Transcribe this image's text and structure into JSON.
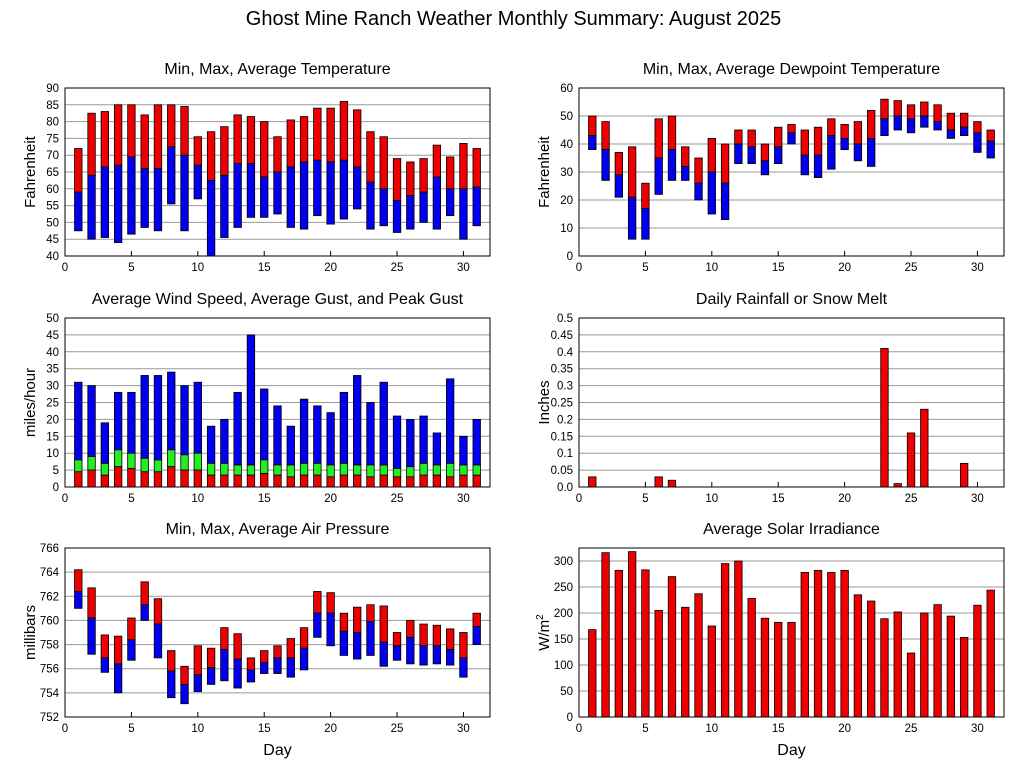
{
  "title": "Ghost Mine Ranch Weather Monthly Summary: August 2025",
  "colors": {
    "red": "#ee0000",
    "blue": "#0000ee",
    "green": "#22ee22",
    "grid": "#999999"
  },
  "chart_data": [
    {
      "id": "temp",
      "type": "bar",
      "title": "Min, Max, Average Temperature",
      "xlabel": "",
      "ylabel": "Fahrenheit",
      "xlim": [
        0,
        32
      ],
      "xticks": [
        "0",
        "5",
        "10",
        "15",
        "20",
        "25",
        "30"
      ],
      "ylim": [
        40,
        90
      ],
      "yticks": [
        "40",
        "45",
        "50",
        "55",
        "60",
        "65",
        "70",
        "75",
        "80",
        "85",
        "90"
      ],
      "days": [
        1,
        2,
        3,
        4,
        5,
        6,
        7,
        8,
        9,
        10,
        11,
        12,
        13,
        14,
        15,
        16,
        17,
        18,
        19,
        20,
        21,
        22,
        23,
        24,
        25,
        26,
        27,
        28,
        29,
        30,
        31
      ],
      "series": [
        {
          "name": "min",
          "values": [
            47.5,
            45,
            45.5,
            44,
            46.5,
            48.5,
            47.5,
            55.5,
            47.5,
            57,
            40,
            45.5,
            48.5,
            51.5,
            51.5,
            52.5,
            48.5,
            48,
            52,
            49.5,
            51,
            54,
            48,
            49,
            47,
            48,
            50,
            48,
            52,
            45,
            49
          ]
        },
        {
          "name": "avg",
          "values": [
            59,
            64,
            66.5,
            67,
            69.5,
            66,
            66,
            72.5,
            70,
            67,
            62.5,
            64,
            67.5,
            67.5,
            63.5,
            65,
            66.5,
            68,
            68.5,
            68,
            68.5,
            66.5,
            62,
            60,
            56.5,
            58,
            59,
            63.5,
            60,
            60,
            60.5
          ]
        },
        {
          "name": "max",
          "values": [
            72,
            82.5,
            83,
            85,
            85,
            82,
            85,
            85,
            84.5,
            75.5,
            77,
            78.5,
            82,
            81.5,
            80,
            75.5,
            80.5,
            81.5,
            84,
            84,
            86,
            83.5,
            77,
            75.5,
            69,
            68,
            69,
            73,
            69.5,
            73.5,
            72
          ]
        }
      ]
    },
    {
      "id": "dew",
      "type": "bar",
      "title": "Min, Max, Average Dewpoint Temperature",
      "xlabel": "",
      "ylabel": "Fahrenheit",
      "xlim": [
        0,
        32
      ],
      "xticks": [
        "0",
        "5",
        "10",
        "15",
        "20",
        "25",
        "30"
      ],
      "ylim": [
        0,
        60
      ],
      "yticks": [
        "0",
        "10",
        "20",
        "30",
        "40",
        "50",
        "60"
      ],
      "days": [
        1,
        2,
        3,
        4,
        5,
        6,
        7,
        8,
        9,
        10,
        11,
        12,
        13,
        14,
        15,
        16,
        17,
        18,
        19,
        20,
        21,
        22,
        23,
        24,
        25,
        26,
        27,
        28,
        29,
        30,
        31
      ],
      "series": [
        {
          "name": "min",
          "values": [
            38,
            27,
            21,
            6,
            6,
            22,
            27,
            27,
            20,
            15,
            13,
            33,
            33,
            29,
            33,
            40,
            29,
            28,
            31,
            38,
            34,
            32,
            43,
            45,
            44,
            46,
            45,
            42,
            43,
            37,
            35
          ]
        },
        {
          "name": "avg",
          "values": [
            43,
            38,
            29,
            21,
            17,
            35,
            38,
            32,
            26,
            30,
            26,
            40,
            39,
            34,
            39,
            44,
            36,
            36,
            43,
            42,
            40,
            42,
            49,
            50,
            49,
            50,
            48,
            45,
            46,
            44,
            41
          ]
        },
        {
          "name": "max",
          "values": [
            50,
            48,
            37,
            39,
            26,
            49,
            50,
            39,
            35,
            42,
            40,
            45,
            45,
            40,
            46,
            47,
            45,
            46,
            49,
            47,
            48,
            52,
            56,
            55.5,
            54,
            55,
            54,
            51,
            51,
            48,
            45
          ]
        }
      ]
    },
    {
      "id": "wind",
      "type": "bar",
      "title": "Average Wind Speed, Average Gust, and Peak Gust",
      "xlabel": "",
      "ylabel": "miles/hour",
      "xlim": [
        0,
        32
      ],
      "xticks": [
        "0",
        "5",
        "10",
        "15",
        "20",
        "25",
        "30"
      ],
      "ylim": [
        0,
        50
      ],
      "yticks": [
        "0",
        "5",
        "10",
        "15",
        "20",
        "25",
        "30",
        "35",
        "40",
        "45",
        "50"
      ],
      "days": [
        1,
        2,
        3,
        4,
        5,
        6,
        7,
        8,
        9,
        10,
        11,
        12,
        13,
        14,
        15,
        16,
        17,
        18,
        19,
        20,
        21,
        22,
        23,
        24,
        25,
        26,
        27,
        28,
        29,
        30,
        31
      ],
      "series": [
        {
          "name": "avg_wind",
          "values": [
            4.5,
            5,
            3.5,
            6,
            5.5,
            4.5,
            4.5,
            6,
            5,
            5,
            3.5,
            3.5,
            3.5,
            3.5,
            4,
            3.5,
            3,
            3.5,
            3.5,
            3,
            3.5,
            3.5,
            3,
            3.5,
            3,
            3,
            3.5,
            3.5,
            3,
            3.5,
            3.5
          ]
        },
        {
          "name": "avg_gust",
          "values": [
            8,
            9,
            7,
            11,
            10,
            8.5,
            8,
            11,
            9.5,
            10,
            7,
            7,
            6.5,
            6.5,
            8,
            6.5,
            6.5,
            7,
            7,
            6.5,
            7,
            6.5,
            6.5,
            6.5,
            5.5,
            6,
            7,
            6.5,
            7,
            6.5,
            6.5
          ]
        },
        {
          "name": "peak_gust",
          "values": [
            31,
            30,
            19,
            28,
            28,
            33,
            33,
            34,
            30,
            31,
            18,
            20,
            28,
            45,
            29,
            24,
            18,
            26,
            24,
            22,
            28,
            33,
            25,
            31,
            21,
            20,
            21,
            16,
            32,
            15,
            20
          ]
        }
      ]
    },
    {
      "id": "rain",
      "type": "bar",
      "title": "Daily Rainfall or Snow Melt",
      "xlabel": "",
      "ylabel": "Inches",
      "xlim": [
        0,
        32
      ],
      "xticks": [
        "0",
        "5",
        "10",
        "15",
        "20",
        "25",
        "30"
      ],
      "ylim": [
        0,
        0.5
      ],
      "yticks": [
        "0.0",
        "0.05",
        "0.1",
        "0.15",
        "0.2",
        "0.25",
        "0.3",
        "0.35",
        "0.4",
        "0.45",
        "0.5"
      ],
      "days": [
        1,
        6,
        7,
        23,
        24,
        25,
        26,
        29
      ],
      "values": [
        0.03,
        0.03,
        0.02,
        0.41,
        0.01,
        0.16,
        0.23,
        0.07
      ]
    },
    {
      "id": "press",
      "type": "bar",
      "title": "Min, Max, Average Air Pressure",
      "xlabel": "Day",
      "ylabel": "millibars",
      "xlim": [
        0,
        32
      ],
      "xticks": [
        "0",
        "5",
        "10",
        "15",
        "20",
        "25",
        "30"
      ],
      "ylim": [
        752,
        766
      ],
      "yticks": [
        "752",
        "754",
        "756",
        "758",
        "760",
        "762",
        "764",
        "766"
      ],
      "days": [
        1,
        2,
        3,
        4,
        5,
        6,
        7,
        8,
        9,
        10,
        11,
        12,
        13,
        14,
        15,
        16,
        17,
        18,
        19,
        20,
        21,
        22,
        23,
        24,
        25,
        26,
        27,
        28,
        29,
        30,
        31
      ],
      "series": [
        {
          "name": "min",
          "values": [
            761,
            757.2,
            755.7,
            754,
            756.7,
            760,
            756.9,
            753.6,
            753.1,
            754.1,
            754.7,
            755,
            754.4,
            754.9,
            755.6,
            755.6,
            755.3,
            755.9,
            758.6,
            757.9,
            757.1,
            756.8,
            757.1,
            756.2,
            756.7,
            756.4,
            756.3,
            756.4,
            756.3,
            755.3,
            758
          ]
        },
        {
          "name": "avg",
          "values": [
            762.4,
            760.2,
            756.9,
            756.4,
            758.4,
            761.3,
            759.7,
            755.8,
            754.7,
            755.5,
            756.1,
            757.6,
            756.8,
            755.9,
            756.5,
            756.9,
            756.9,
            757.7,
            760.6,
            760.6,
            759.1,
            759,
            759.9,
            758.2,
            757.9,
            758.6,
            757.9,
            757.9,
            757.6,
            756.9,
            759.5
          ]
        },
        {
          "name": "max",
          "values": [
            764.2,
            762.7,
            758.8,
            758.7,
            760.2,
            763.2,
            761.8,
            757.5,
            756.2,
            757.9,
            757.7,
            759.4,
            758.9,
            756.9,
            757.5,
            757.9,
            758.5,
            759.4,
            762.4,
            762.3,
            760.6,
            761.1,
            761.3,
            761.2,
            759,
            760,
            759.7,
            759.6,
            759.3,
            759,
            760.6
          ]
        }
      ]
    },
    {
      "id": "solar",
      "type": "bar",
      "title": "Average Solar Irradiance",
      "xlabel": "Day",
      "ylabel": "W/m",
      "ylabel_sup": "2",
      "xlim": [
        0,
        32
      ],
      "xticks": [
        "0",
        "5",
        "10",
        "15",
        "20",
        "25",
        "30"
      ],
      "ylim": [
        0,
        325
      ],
      "yticks": [
        "0",
        "50",
        "100",
        "150",
        "200",
        "250",
        "300"
      ],
      "days": [
        1,
        2,
        3,
        4,
        5,
        6,
        7,
        8,
        9,
        10,
        11,
        12,
        13,
        14,
        15,
        16,
        17,
        18,
        19,
        20,
        21,
        22,
        23,
        24,
        25,
        26,
        27,
        28,
        29,
        30,
        31
      ],
      "values": [
        168,
        316,
        282,
        318,
        283,
        205,
        270,
        211,
        237,
        175,
        295,
        300,
        228,
        190,
        182,
        182,
        278,
        282,
        278,
        282,
        235,
        223,
        189,
        202,
        123,
        200,
        216,
        194,
        153,
        215,
        244
      ]
    }
  ]
}
